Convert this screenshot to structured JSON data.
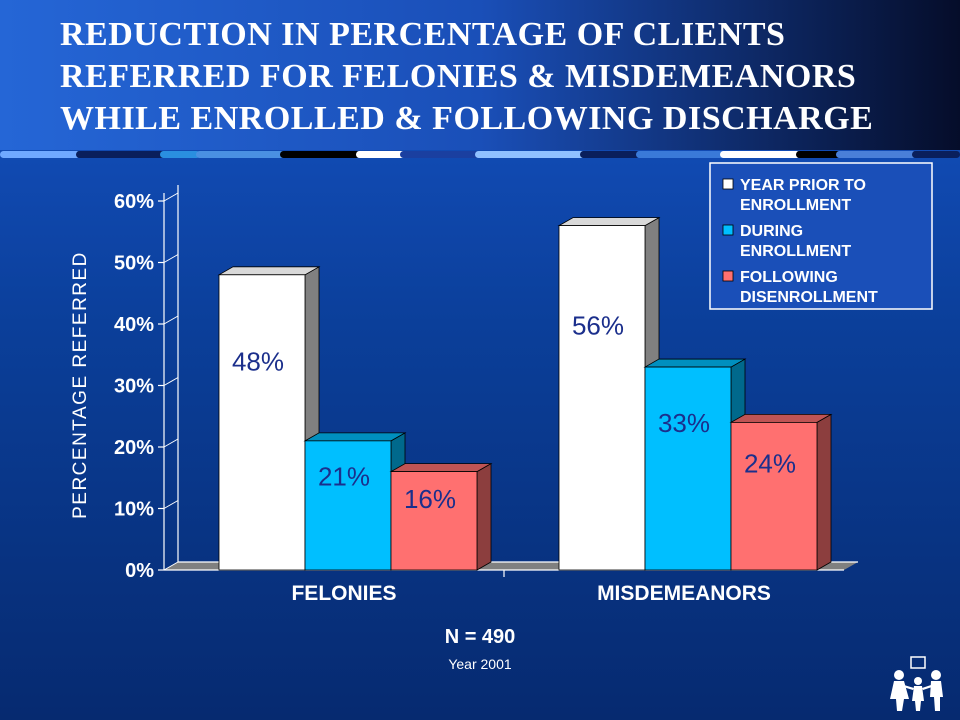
{
  "title_lines": [
    "REDUCTION IN PERCENTAGE OF CLIENTS",
    "REFERRED FOR FELONIES & MISDEMEANORS",
    "WHILE ENROLLED & FOLLOWING DISCHARGE"
  ],
  "footer": {
    "n": "N = 490",
    "year": "Year 2001"
  },
  "colors": {
    "accent_blue": "#1a4fb8",
    "series_white": "#ffffff",
    "series_cyan": "#00bfff",
    "series_red": "#ff7070",
    "label_navy": "#1b2f8c"
  },
  "icons": {
    "logo": "family-figures-icon"
  },
  "chart_data": {
    "type": "bar",
    "title": "",
    "xlabel": "",
    "ylabel": "PERCENTAGE REFERRED",
    "ylim": [
      0,
      60
    ],
    "yticks": [
      "0%",
      "10%",
      "20%",
      "30%",
      "40%",
      "50%",
      "60%"
    ],
    "categories": [
      "FELONIES",
      "MISDEMEANORS"
    ],
    "series": [
      {
        "name": "YEAR PRIOR TO ENROLLMENT",
        "legend_lines": [
          "YEAR PRIOR TO",
          "ENROLLMENT"
        ],
        "color": "#ffffff",
        "values": [
          48,
          56
        ],
        "labels": [
          "48%",
          "56%"
        ]
      },
      {
        "name": "DURING ENROLLMENT",
        "legend_lines": [
          "DURING",
          "ENROLLMENT"
        ],
        "color": "#00bfff",
        "values": [
          21,
          33
        ],
        "labels": [
          "21%",
          "33%"
        ]
      },
      {
        "name": "FOLLOWING DISENROLLMENT",
        "legend_lines": [
          "FOLLOWING",
          "DISENROLLMENT"
        ],
        "color": "#ff7070",
        "values": [
          16,
          24
        ],
        "labels": [
          "16%",
          "24%"
        ]
      }
    ],
    "grid": false,
    "legend_position": "top-right",
    "three_d": true
  }
}
